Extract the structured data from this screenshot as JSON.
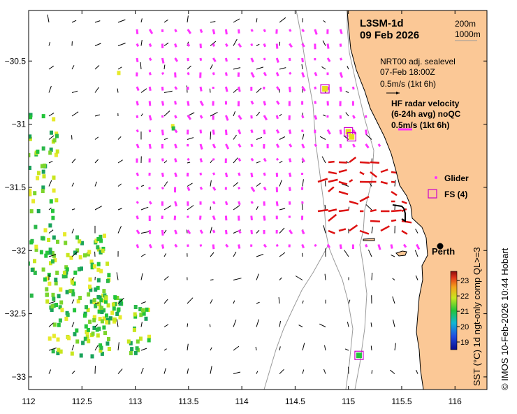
{
  "map": {
    "title": "L3SM-1d",
    "date": "09 Feb 2026",
    "bathymetry": {
      "contour_1": "200m",
      "contour_2": "1000m"
    },
    "x_ticks": [
      112,
      112.5,
      113,
      113.5,
      114,
      114.5,
      115,
      115.5,
      116
    ],
    "x_tick_labels": [
      "112",
      "112.5",
      "113",
      "113.5",
      "114",
      "114.5",
      "115",
      "115.5",
      "116"
    ],
    "y_ticks": [
      -30.5,
      -31,
      -31.5,
      -32,
      -32.5,
      -33
    ],
    "y_tick_labels": [
      "−30.5",
      "−31",
      "−31.5",
      "−32",
      "−32.5",
      "−33"
    ],
    "xlim": [
      112,
      116.3
    ],
    "ylim": [
      -33.1,
      -30.1
    ]
  },
  "legend": {
    "sealevel_line1": "NRT00 adj. sealevel",
    "sealevel_line2": "07-Feb 18:00Z",
    "sealevel_scale": "0.5m/s (1kt 6h)",
    "hf_line1": "HF radar velocity",
    "hf_line2": "(6-24h avg) noQC",
    "hf_scale": "0.5m/s (1kt 6h)",
    "glider": "Glider",
    "fs": "FS (4)",
    "city": "Perth"
  },
  "colorbar": {
    "label": "SST (°C) 1d ngt-only comp QL>=3",
    "ticks": [
      19,
      20,
      21,
      22,
      23
    ],
    "tick_labels": [
      "19",
      "20",
      "21",
      "22",
      "23"
    ],
    "range": [
      18.5,
      23.6
    ]
  },
  "credit": "© IMOS 10-Feb-2026 10:44 Hobart",
  "colors": {
    "land": "#fbc896",
    "sealevel_arrow": "#000000",
    "hf_arrow": "#dd1111",
    "glider": "#ff33ff",
    "fs_box": "#cc00cc",
    "contour": "#9a9a9a"
  },
  "chart_data": {
    "type": "map",
    "fs_stations": [
      {
        "lon": 114.78,
        "lat": -30.72
      },
      {
        "lon": 115.0,
        "lat": -31.06
      },
      {
        "lon": 115.03,
        "lat": -31.1
      },
      {
        "lon": 115.1,
        "lat": -32.83
      }
    ],
    "perth": {
      "lon": 115.86,
      "lat": -31.95
    }
  }
}
